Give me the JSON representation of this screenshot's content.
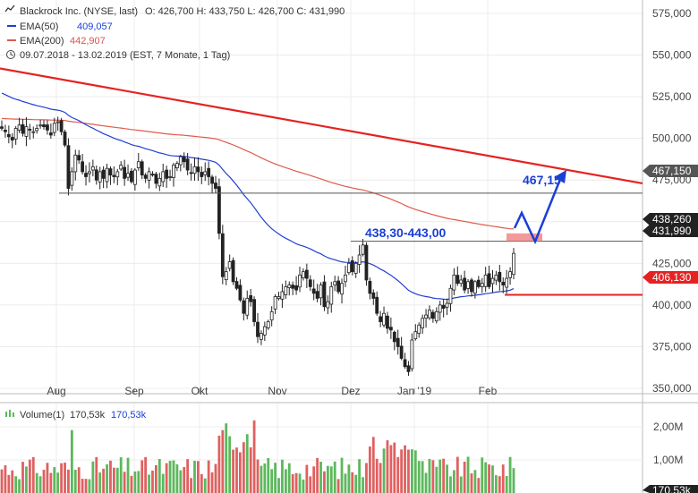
{
  "header": {
    "symbol": "Blackrock Inc. (NYSE, last)",
    "ohlc": "O: 426,700  H: 433,750  L: 426,700  C: 431,990",
    "ema50_label": "EMA(50)",
    "ema50_value": "409,057",
    "ema200_label": "EMA(200)",
    "ema200_value": "442,907",
    "range_text": "09.07.2018 - 13.02.2019   (EST, 7 Monate, 1 Tag)"
  },
  "colors": {
    "ema50": "#1f3fd6",
    "ema200": "#e05a4a",
    "trendline": "#e52222",
    "candle": "#222222",
    "arrow": "#1a3fd6",
    "support": "#e52222",
    "zone": "#f08080",
    "vol_up": "#5cb85c",
    "vol_down": "#e06060",
    "price_label_dark": "#222222",
    "price_label_gray": "#555555",
    "price_label_red": "#e52222"
  },
  "chart_data": {
    "type": "candlestick",
    "y_axis": {
      "ticks": [
        "575,000",
        "550,000",
        "525,000",
        "500,000",
        "475,000",
        "450,000",
        "425,000",
        "400,000",
        "375,000",
        "350,000"
      ],
      "ylim": [
        345,
        580
      ]
    },
    "x_axis": {
      "ticks": [
        "Aug",
        "Sep",
        "Okt",
        "Nov",
        "Dez",
        "Jan '19",
        "Feb"
      ]
    },
    "price_labels": [
      {
        "value": "467,150",
        "style": "gray"
      },
      {
        "value": "438,260",
        "style": "dark"
      },
      {
        "value": "431,990",
        "style": "dark"
      },
      {
        "value": "406,130",
        "style": "red"
      }
    ],
    "annotations": {
      "zone_label": "438,30-443,00",
      "target_label": "467,15"
    },
    "close_series": [
      506,
      504,
      501,
      499,
      506,
      508,
      503,
      507,
      505,
      504,
      506,
      508,
      507,
      505,
      502,
      509,
      510,
      504,
      496,
      470,
      480,
      490,
      487,
      480,
      477,
      480,
      483,
      475,
      480,
      476,
      482,
      478,
      477,
      480,
      484,
      476,
      479,
      474,
      481,
      486,
      478,
      476,
      480,
      478,
      473,
      476,
      480,
      476,
      477,
      484,
      485,
      489,
      486,
      481,
      479,
      483,
      480,
      477,
      480,
      477,
      473,
      470,
      443,
      417,
      420,
      426,
      414,
      410,
      403,
      395,
      404,
      402,
      390,
      381,
      383,
      387,
      390,
      396,
      405,
      405,
      408,
      411,
      412,
      410,
      409,
      418,
      420,
      416,
      411,
      407,
      404,
      412,
      399,
      402,
      411,
      414,
      408,
      413,
      418,
      425,
      420,
      425,
      430,
      436,
      415,
      407,
      404,
      395,
      390,
      395,
      386,
      385,
      378,
      375,
      368,
      363,
      360,
      379,
      384,
      388,
      392,
      394,
      397,
      392,
      396,
      400,
      398,
      401,
      410,
      418,
      413,
      415,
      409,
      414,
      408,
      414,
      411,
      413,
      418,
      411,
      416,
      418,
      414,
      412,
      416,
      420,
      431
    ],
    "volume": {
      "label": "Volume(1)",
      "value1": "170,53k",
      "value2": "170,53k",
      "ticks": [
        "2,00M",
        "1,00M"
      ],
      "last_label": "170,53k"
    }
  }
}
